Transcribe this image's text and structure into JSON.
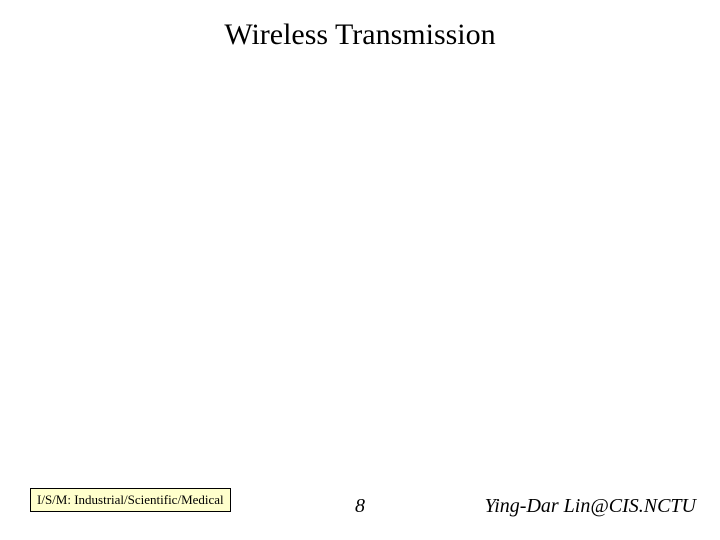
{
  "title": "Wireless Transmission",
  "footnote": "I/S/M: Industrial/Scientific/Medical",
  "page_number": "8",
  "author": "Ying-Dar Lin@CIS.NCTU",
  "colors": {
    "background": "#ffffff",
    "text": "#000000",
    "footnote_bg": "#ffffcc",
    "footnote_border": "#000000"
  },
  "typography": {
    "title_fontsize": 30,
    "footer_fontsize": 20,
    "footnote_fontsize": 13,
    "font_family": "Times New Roman",
    "footer_italic": true
  }
}
